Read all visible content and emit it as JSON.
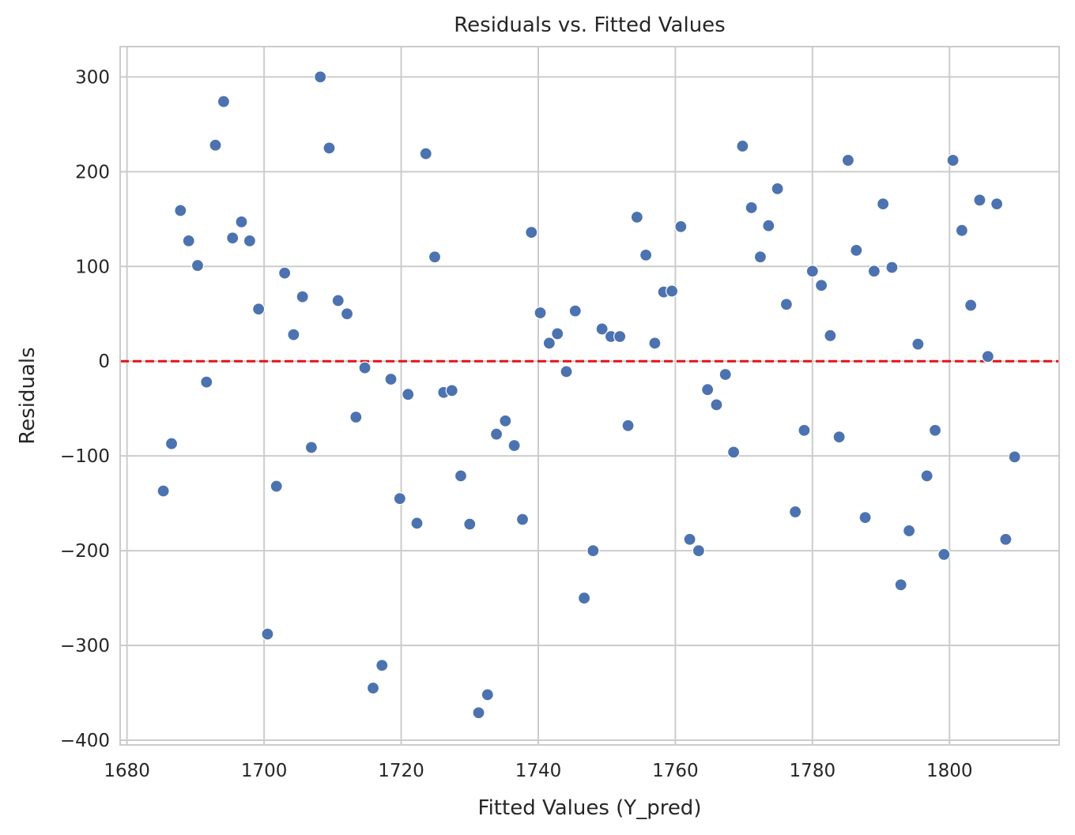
{
  "chart_data": {
    "type": "scatter",
    "title": "Residuals vs. Fitted Values",
    "xlabel": "Fitted Values (Y_pred)",
    "ylabel": "Residuals",
    "xlim": [
      1679,
      1816
    ],
    "ylim": [
      -405,
      332
    ],
    "xticks": [
      1680,
      1700,
      1720,
      1740,
      1760,
      1780,
      1800
    ],
    "yticks": [
      -400,
      -300,
      -200,
      -100,
      0,
      100,
      200,
      300
    ],
    "xtick_labels": [
      "1680",
      "1700",
      "1720",
      "1740",
      "1760",
      "1780",
      "1800"
    ],
    "ytick_labels": [
      "−400",
      "−300",
      "−200",
      "−100",
      "0",
      "100",
      "200",
      "300"
    ],
    "grid": true,
    "reference_line": {
      "y": 0,
      "style": "dashed",
      "color": "#e0141a"
    },
    "marker_color": "#4c72b0",
    "points": [
      [
        1685.3,
        -137
      ],
      [
        1686.5,
        -87
      ],
      [
        1687.8,
        159
      ],
      [
        1689.0,
        127
      ],
      [
        1690.3,
        101
      ],
      [
        1691.6,
        -22
      ],
      [
        1692.9,
        228
      ],
      [
        1694.1,
        274
      ],
      [
        1695.4,
        130
      ],
      [
        1696.7,
        147
      ],
      [
        1697.9,
        127
      ],
      [
        1699.2,
        55
      ],
      [
        1700.5,
        -288
      ],
      [
        1701.8,
        -132
      ],
      [
        1703.0,
        93
      ],
      [
        1704.3,
        28
      ],
      [
        1705.6,
        68
      ],
      [
        1706.9,
        -91
      ],
      [
        1708.2,
        300
      ],
      [
        1709.5,
        225
      ],
      [
        1710.8,
        64
      ],
      [
        1712.1,
        50
      ],
      [
        1713.4,
        -59
      ],
      [
        1714.7,
        -7
      ],
      [
        1715.9,
        -345
      ],
      [
        1717.2,
        -321
      ],
      [
        1718.5,
        -19
      ],
      [
        1719.8,
        -145
      ],
      [
        1721.0,
        -35
      ],
      [
        1722.3,
        -171
      ],
      [
        1723.6,
        219
      ],
      [
        1724.9,
        110
      ],
      [
        1726.2,
        -33
      ],
      [
        1727.4,
        -31
      ],
      [
        1728.7,
        -121
      ],
      [
        1730.0,
        -172
      ],
      [
        1731.3,
        -371
      ],
      [
        1732.6,
        -352
      ],
      [
        1733.9,
        -77
      ],
      [
        1735.2,
        -63
      ],
      [
        1736.5,
        -89
      ],
      [
        1737.7,
        -167
      ],
      [
        1739.0,
        136
      ],
      [
        1740.3,
        51
      ],
      [
        1741.6,
        19
      ],
      [
        1742.8,
        29
      ],
      [
        1744.1,
        -11
      ],
      [
        1745.4,
        53
      ],
      [
        1746.7,
        -250
      ],
      [
        1748.0,
        -200
      ],
      [
        1749.3,
        34
      ],
      [
        1750.6,
        26
      ],
      [
        1751.9,
        26
      ],
      [
        1753.1,
        -68
      ],
      [
        1754.4,
        152
      ],
      [
        1755.7,
        112
      ],
      [
        1757.0,
        19
      ],
      [
        1758.3,
        73
      ],
      [
        1759.5,
        74
      ],
      [
        1760.8,
        142
      ],
      [
        1762.1,
        -188
      ],
      [
        1763.4,
        -200
      ],
      [
        1764.7,
        -30
      ],
      [
        1766.0,
        -46
      ],
      [
        1767.3,
        -14
      ],
      [
        1768.5,
        -96
      ],
      [
        1769.8,
        227
      ],
      [
        1771.1,
        162
      ],
      [
        1772.4,
        110
      ],
      [
        1773.6,
        143
      ],
      [
        1774.9,
        182
      ],
      [
        1776.2,
        60
      ],
      [
        1777.5,
        -159
      ],
      [
        1778.8,
        -73
      ],
      [
        1780.0,
        95
      ],
      [
        1781.3,
        80
      ],
      [
        1782.6,
        27
      ],
      [
        1783.9,
        -80
      ],
      [
        1785.2,
        212
      ],
      [
        1786.4,
        117
      ],
      [
        1787.7,
        -165
      ],
      [
        1789.0,
        95
      ],
      [
        1790.3,
        166
      ],
      [
        1791.6,
        99
      ],
      [
        1792.9,
        -236
      ],
      [
        1794.1,
        -179
      ],
      [
        1795.4,
        18
      ],
      [
        1796.7,
        -121
      ],
      [
        1797.9,
        -73
      ],
      [
        1799.2,
        -204
      ],
      [
        1800.5,
        212
      ],
      [
        1801.8,
        138
      ],
      [
        1803.1,
        59
      ],
      [
        1804.4,
        170
      ],
      [
        1805.6,
        5
      ],
      [
        1806.9,
        166
      ],
      [
        1808.2,
        -188
      ],
      [
        1809.5,
        -101
      ]
    ]
  }
}
